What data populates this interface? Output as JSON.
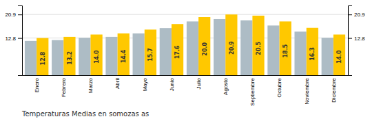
{
  "chart_data": {
    "type": "bar",
    "title": "Temperaturas Medias en somozas as",
    "categories": [
      "Enero",
      "Febrero",
      "Marzo",
      "Abril",
      "Mayo",
      "Junio",
      "Julio",
      "Agosto",
      "Septiembre",
      "Octubre",
      "Noviembre",
      "Diciembre"
    ],
    "series": [
      {
        "color": "#ADBCC5",
        "values": [
          11.8,
          12.1,
          12.9,
          13.2,
          14.4,
          16.2,
          18.5,
          19.3,
          18.9,
          17.1,
          15.0,
          12.9
        ]
      },
      {
        "color": "#FFC800",
        "values": [
          12.8,
          13.2,
          14.0,
          14.4,
          15.7,
          17.6,
          20.0,
          20.9,
          20.5,
          18.5,
          16.3,
          14.0
        ],
        "data_labels": true,
        "value_labels": [
          "12.8",
          "13.2",
          "14.0",
          "14.4",
          "15.7",
          "17.6",
          "20.0",
          "20.9",
          "20.5",
          "18.5",
          "16.3",
          "14.0"
        ]
      }
    ],
    "ylim": [
      0,
      24
    ],
    "yticks": [
      12.8,
      20.9
    ],
    "grid": true
  }
}
